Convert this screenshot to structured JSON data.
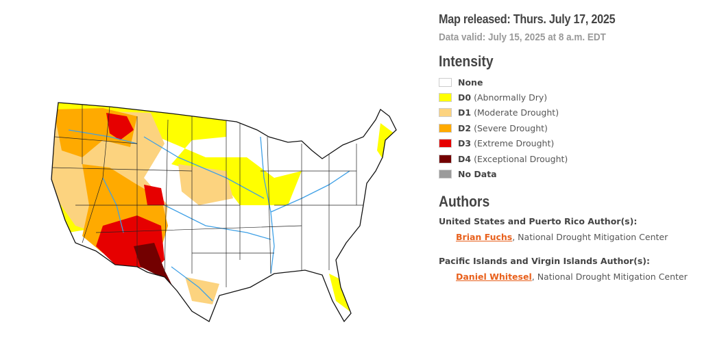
{
  "header": {
    "released": "Map released: Thurs. July 17, 2025",
    "valid": "Data valid: July 15, 2025 at 8 a.m. EDT"
  },
  "legend": {
    "title": "Intensity",
    "items": [
      {
        "code": "",
        "label": "None",
        "color": "#ffffff"
      },
      {
        "code": "D0",
        "label": "(Abnormally Dry)",
        "color": "#ffff00"
      },
      {
        "code": "D1",
        "label": "(Moderate Drought)",
        "color": "#fcd37f"
      },
      {
        "code": "D2",
        "label": "(Severe Drought)",
        "color": "#ffaa00"
      },
      {
        "code": "D3",
        "label": "(Extreme Drought)",
        "color": "#e60000"
      },
      {
        "code": "D4",
        "label": "(Exceptional Drought)",
        "color": "#730000"
      },
      {
        "code": "",
        "label": "No Data",
        "color": "#9b9b9b"
      }
    ]
  },
  "authors": {
    "title": "Authors",
    "groups": [
      {
        "heading": "United States and Puerto Rico Author(s):",
        "name": "Brian Fuchs",
        "org": ", National Drought Mitigation Center"
      },
      {
        "heading": "Pacific Islands and Virgin Islands Author(s):",
        "name": "Daniel Whitesel",
        "org": ", National Drought Mitigation Center"
      }
    ]
  },
  "colors": {
    "river": "#3ea0e6",
    "link": "#e8601c"
  }
}
